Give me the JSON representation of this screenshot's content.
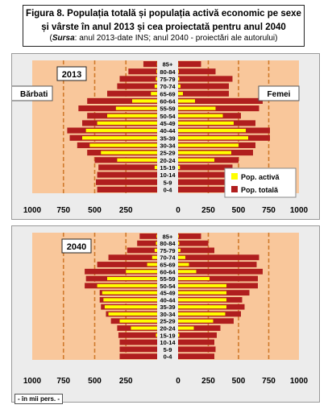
{
  "header": {
    "title_line1": "Figura 8. Populația totală și populația  activă economic  pe sexe",
    "title_line2": "și vârste  în anul 2013  și cea proiectată pentru anul 2040",
    "source_label": "Sursa",
    "source_text": ": anul 2013-date INS; anul 2040 - proiectări ale autorului)"
  },
  "unit_note": "- în mii pers. -",
  "colors": {
    "total": "#b01e1e",
    "active": "#ffff00",
    "plot_bg": "#f9c79b",
    "dash": "#d07a2c"
  },
  "chart_data": [
    {
      "type": "bar",
      "year_label": "2013",
      "left_label": "Bărbati",
      "right_label": "Femei",
      "legend": [
        "Pop. activă",
        "Pop. totală"
      ],
      "categories": [
        "85+",
        "80-84",
        "75-79",
        "70-74",
        "65-69",
        "60-64",
        "55-59",
        "50-54",
        "45-49",
        "40-44",
        "35-39",
        "30-34",
        "25-29",
        "20-24",
        "15-19",
        "10-14",
        "5-9",
        "0-4"
      ],
      "x_ticks": [
        "1000",
        "750",
        "500",
        "250",
        "0",
        "250",
        "500",
        "750",
        "1000"
      ],
      "xlim": [
        -1000,
        1000
      ],
      "series": [
        {
          "name": "Pop. totală",
          "side": "men",
          "values": [
            110,
            230,
            300,
            320,
            400,
            560,
            630,
            560,
            600,
            720,
            700,
            640,
            560,
            500,
            470,
            480,
            490,
            480
          ]
        },
        {
          "name": "Pop. activă",
          "side": "men",
          "values": [
            2,
            5,
            10,
            20,
            50,
            200,
            330,
            400,
            480,
            570,
            600,
            540,
            450,
            320,
            20,
            0,
            0,
            0
          ]
        },
        {
          "name": "Pop. totală",
          "side": "women",
          "values": [
            190,
            310,
            450,
            420,
            420,
            700,
            670,
            520,
            640,
            760,
            760,
            640,
            620,
            500,
            450,
            460,
            470,
            450
          ]
        },
        {
          "name": "Pop. activă",
          "side": "women",
          "values": [
            2,
            5,
            10,
            20,
            40,
            140,
            310,
            370,
            460,
            560,
            580,
            500,
            440,
            300,
            15,
            0,
            0,
            0
          ]
        }
      ]
    },
    {
      "type": "bar",
      "year_label": "2040",
      "categories": [
        "85+",
        "80-84",
        "75-79",
        "70-74",
        "65-69",
        "60-64",
        "55-59",
        "50-54",
        "45-49",
        "40-44",
        "35-39",
        "30-34",
        "25-29",
        "20-24",
        "15-19",
        "10-14",
        "5-9",
        "0-4"
      ],
      "x_ticks": [
        "1000",
        "750",
        "500",
        "250",
        "0",
        "250",
        "500",
        "750",
        "1000"
      ],
      "xlim": [
        -1000,
        1000
      ],
      "series": [
        {
          "name": "Pop. totală",
          "side": "men",
          "values": [
            140,
            160,
            240,
            390,
            480,
            580,
            570,
            580,
            460,
            460,
            450,
            410,
            370,
            320,
            310,
            300,
            300,
            300
          ]
        },
        {
          "name": "Pop. activă",
          "side": "men",
          "values": [
            5,
            10,
            20,
            40,
            80,
            250,
            400,
            480,
            440,
            430,
            420,
            390,
            300,
            210,
            10,
            0,
            0,
            0
          ]
        },
        {
          "name": "Pop. totală",
          "side": "women",
          "values": [
            190,
            250,
            300,
            670,
            650,
            700,
            660,
            660,
            590,
            530,
            550,
            520,
            460,
            350,
            320,
            300,
            310,
            300
          ]
        },
        {
          "name": "Pop. activă",
          "side": "women",
          "values": [
            5,
            10,
            20,
            60,
            90,
            150,
            260,
            400,
            400,
            400,
            400,
            390,
            290,
            130,
            10,
            0,
            0,
            0
          ]
        }
      ]
    }
  ]
}
